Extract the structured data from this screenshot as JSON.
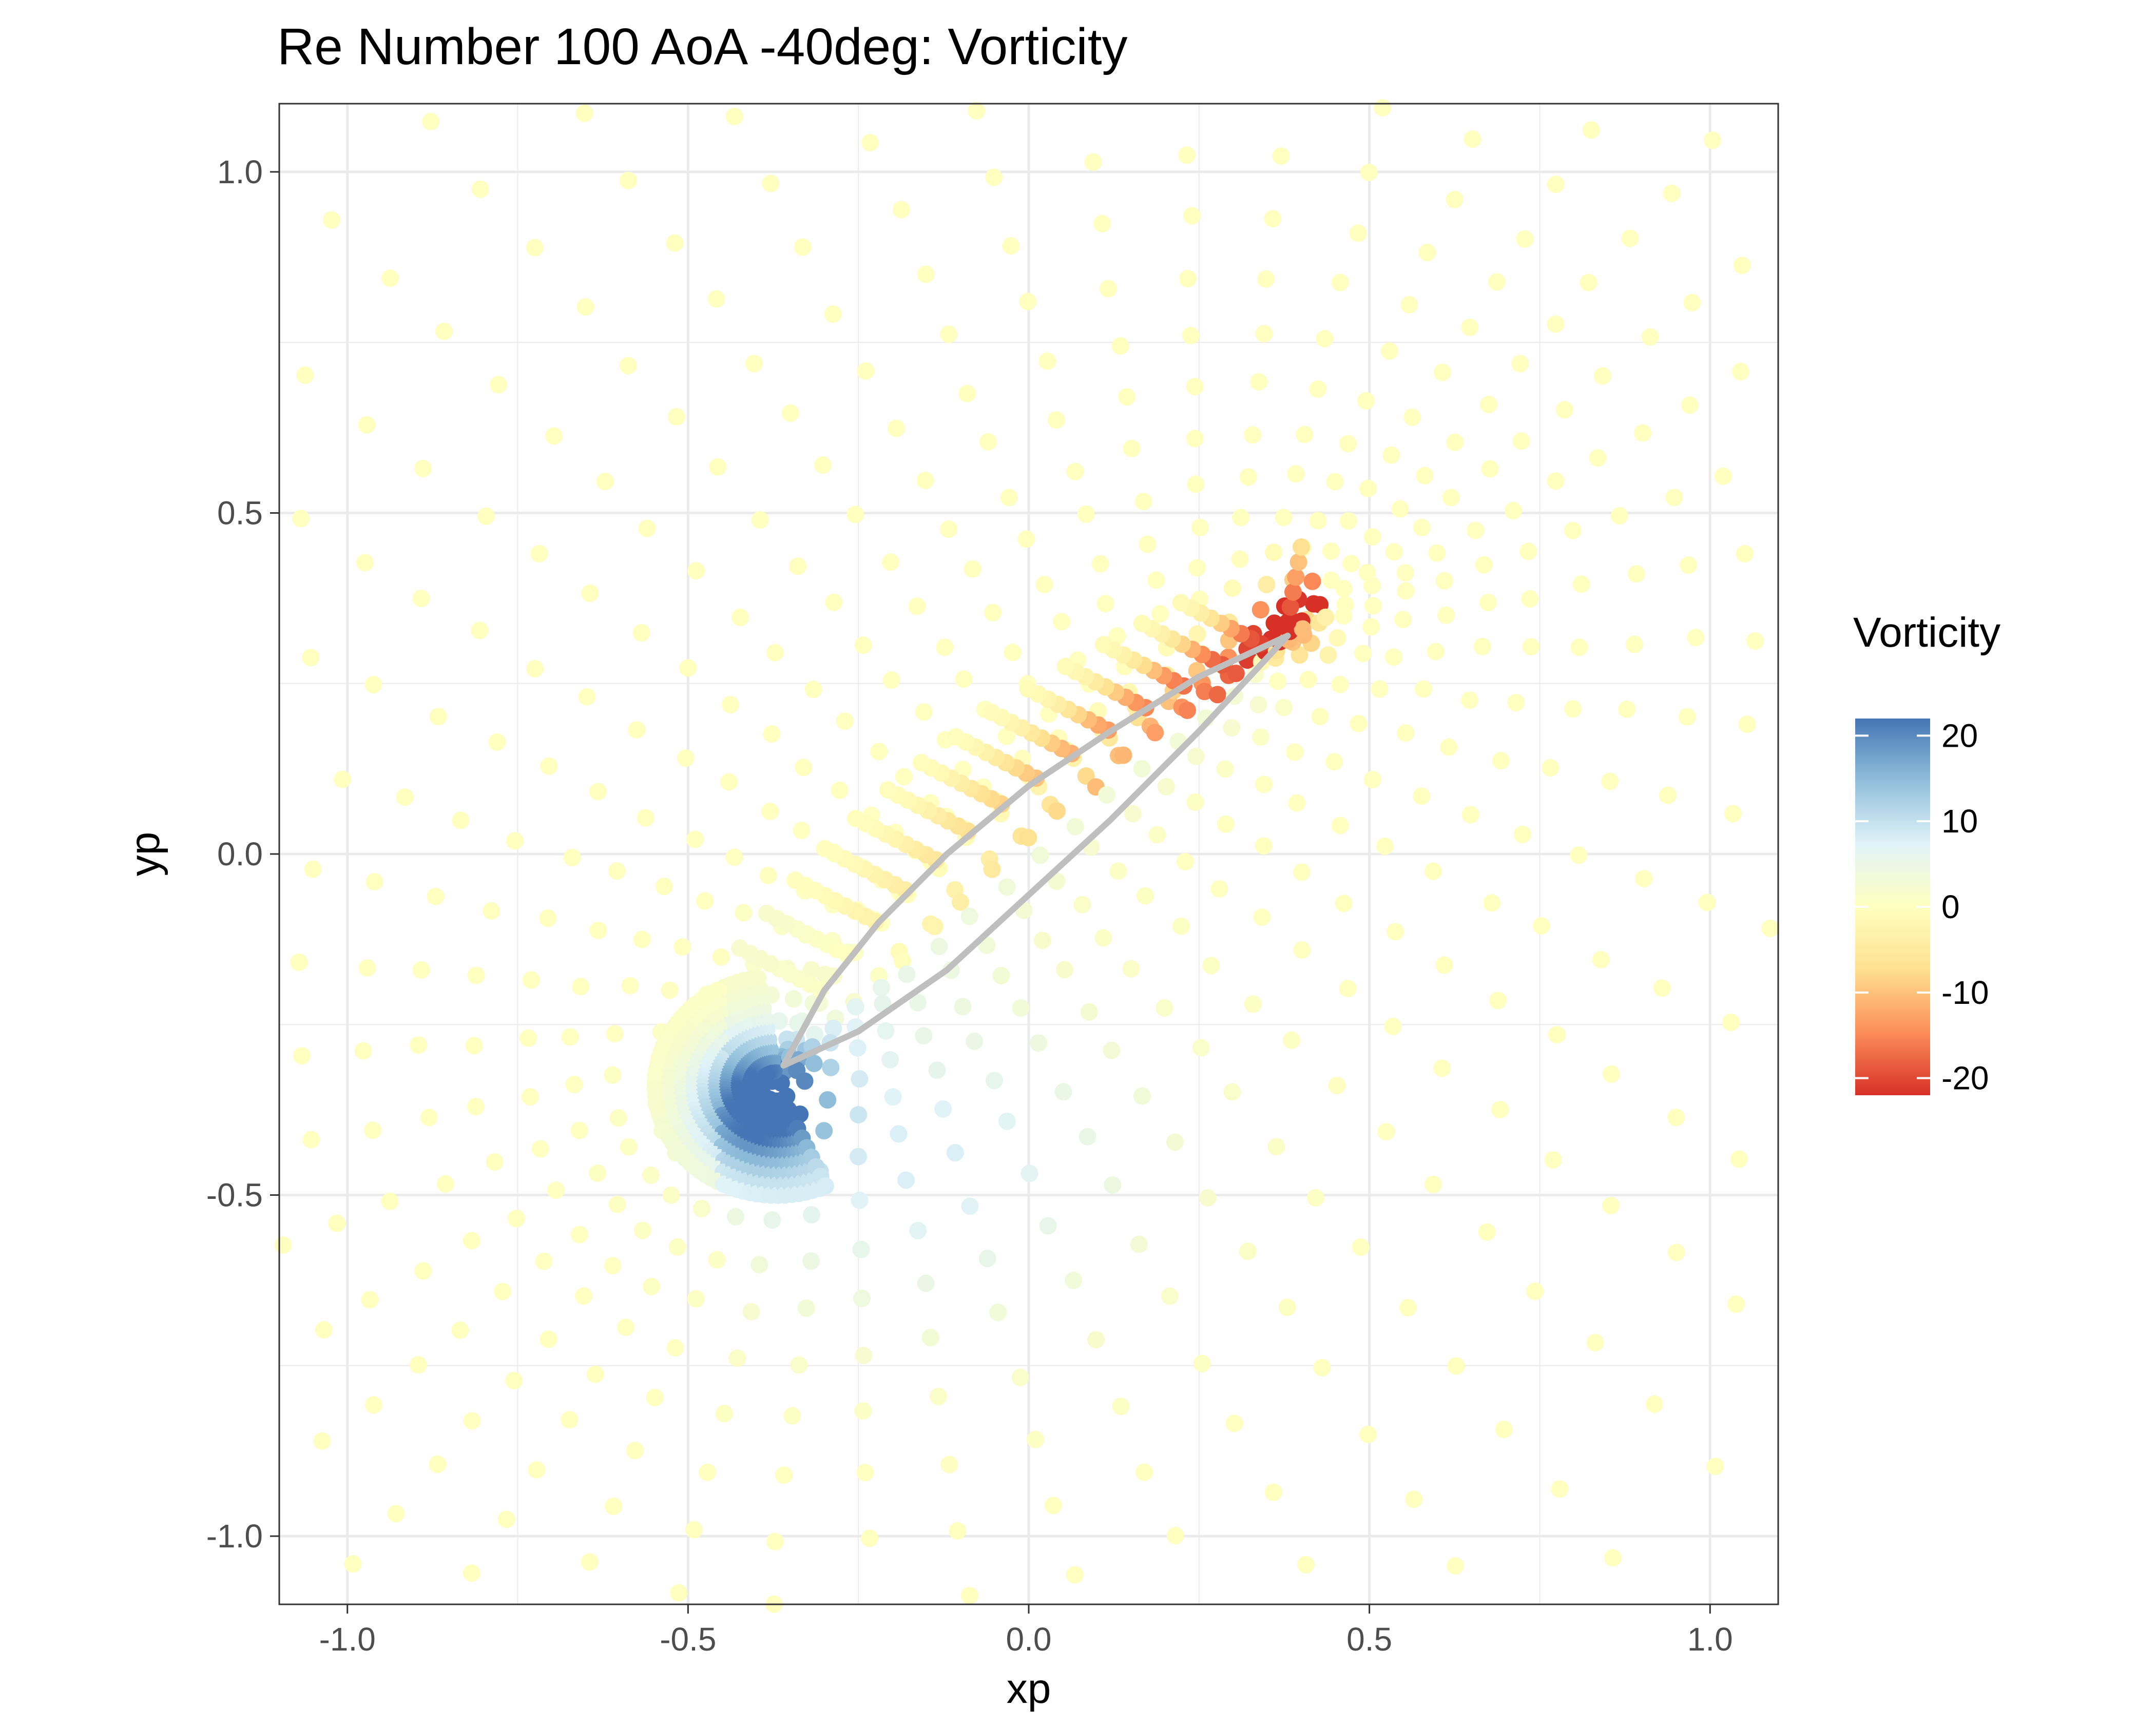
{
  "chart_data": {
    "type": "scatter",
    "title": "Re Number 100 AoA -40deg: Vorticity",
    "xlabel": "xp",
    "ylabel": "yp",
    "xlim": [
      -1.1,
      1.1
    ],
    "ylim": [
      -1.1,
      1.1
    ],
    "x_ticks": [
      -1.0,
      -0.5,
      0.0,
      0.5,
      1.0
    ],
    "x_tick_labels": [
      "-1.0",
      "-0.5",
      "0.0",
      "0.5",
      "1.0"
    ],
    "y_ticks": [
      -1.0,
      -0.5,
      0.0,
      0.5,
      1.0
    ],
    "y_tick_labels": [
      "-1.0",
      "-0.5",
      "0.0",
      "0.5",
      "1.0"
    ],
    "grid": true,
    "theme": "bw",
    "legend": {
      "title": "Vorticity",
      "position": "right",
      "type": "colorbar",
      "limits": [
        -22,
        22
      ],
      "breaks": [
        20,
        10,
        0,
        -10,
        -20
      ],
      "break_labels": [
        "20",
        "10",
        "0",
        "-10",
        "-20"
      ],
      "palette": [
        "#d73027",
        "#fc8d59",
        "#fee090",
        "#ffffbf",
        "#e0f3f8",
        "#91bfdb",
        "#4575b4"
      ]
    },
    "airfoil": {
      "color": "#bfbfbf",
      "leading_edge": [
        -0.36,
        -0.31
      ],
      "trailing_edge": [
        0.38,
        0.32
      ],
      "upper_surface": [
        [
          -0.36,
          -0.31
        ],
        [
          -0.3,
          -0.2
        ],
        [
          -0.22,
          -0.1
        ],
        [
          -0.12,
          0.0
        ],
        [
          0.0,
          0.1
        ],
        [
          0.12,
          0.18
        ],
        [
          0.25,
          0.26
        ],
        [
          0.38,
          0.32
        ]
      ],
      "lower_surface": [
        [
          -0.36,
          -0.31
        ],
        [
          -0.25,
          -0.26
        ],
        [
          -0.12,
          -0.17
        ],
        [
          0.0,
          -0.06
        ],
        [
          0.12,
          0.05
        ],
        [
          0.25,
          0.18
        ],
        [
          0.38,
          0.32
        ]
      ]
    },
    "grid_spec": {
      "description": "O-type grid of points around airfoil",
      "radial_rays": 48,
      "points_per_ray": 24,
      "wake_values": "upper surface near TE ~ -22 to -10, lower-left recirculation near LE ~ +20"
    }
  }
}
